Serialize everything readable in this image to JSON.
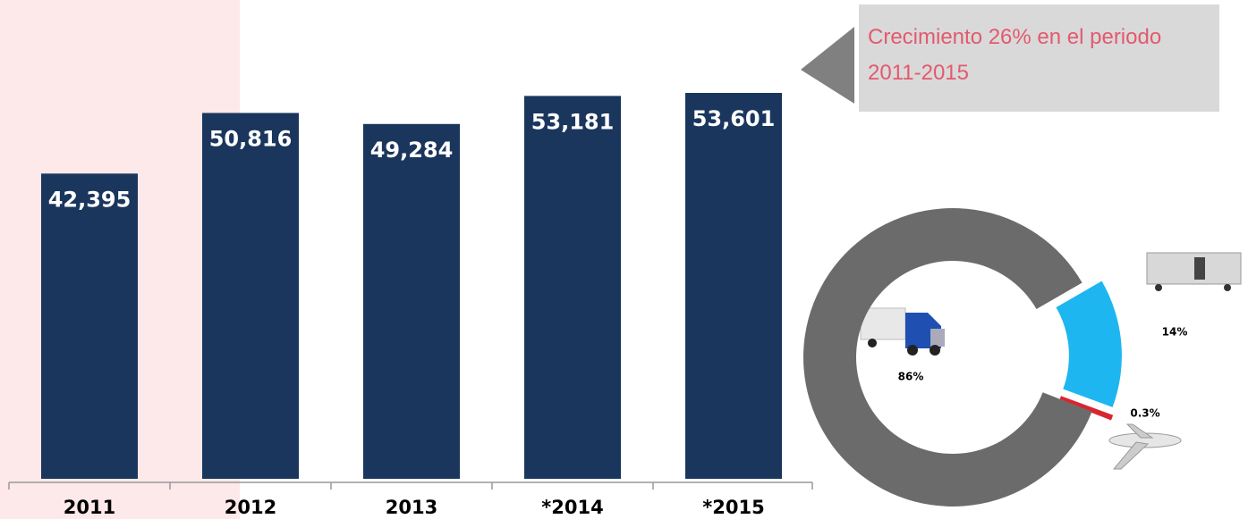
{
  "chart_data": [
    {
      "type": "bar",
      "categories": [
        "2011",
        "2012",
        "2013",
        "*2014",
        "*2015"
      ],
      "values": [
        42395,
        50816,
        49284,
        53181,
        53601
      ],
      "value_labels": [
        "42,395",
        "50,816",
        "49,284",
        "53,181",
        "53,601"
      ],
      "color": "#1b365d",
      "annotation": "Crecimiento  26% en el periodo 2011-2015"
    },
    {
      "type": "donut",
      "values": [
        14,
        0.3,
        86
      ],
      "value_labels": [
        "14%",
        "0.3%",
        "86%"
      ],
      "colors": [
        "#1eb6f0",
        "#d9262e",
        "#6b6b6b"
      ]
    }
  ]
}
